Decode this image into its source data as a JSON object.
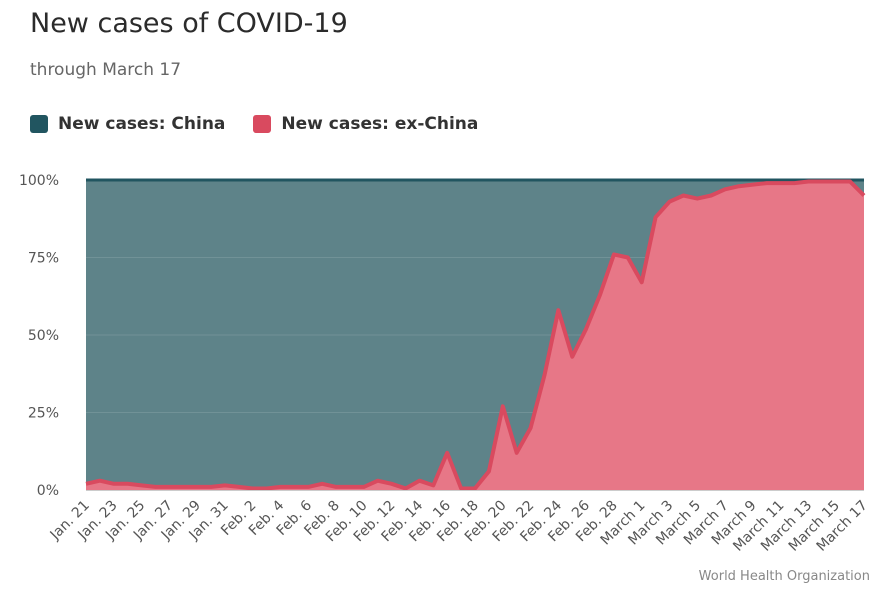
{
  "title": "New cases of COVID-19",
  "subtitle": "through March 17",
  "source": "World Health Organization",
  "colors": {
    "china": "#215560",
    "china_fill": "#5e8389",
    "exchina": "#d94a5f",
    "exchina_fill": "#e77787",
    "grid": "#e6e6e6"
  },
  "chart_data": {
    "type": "area",
    "stacking": "percent",
    "x": [
      "Jan. 21",
      "Jan. 22",
      "Jan. 23",
      "Jan. 24",
      "Jan. 25",
      "Jan. 26",
      "Jan. 27",
      "Jan. 28",
      "Jan. 29",
      "Jan. 30",
      "Jan. 31",
      "Feb. 1",
      "Feb. 2",
      "Feb. 3",
      "Feb. 4",
      "Feb. 5",
      "Feb. 6",
      "Feb. 7",
      "Feb. 8",
      "Feb. 9",
      "Feb. 10",
      "Feb. 11",
      "Feb. 12",
      "Feb. 13",
      "Feb. 14",
      "Feb. 15",
      "Feb. 16",
      "Feb. 17",
      "Feb. 18",
      "Feb. 19",
      "Feb. 20",
      "Feb. 21",
      "Feb. 22",
      "Feb. 23",
      "Feb. 24",
      "Feb. 25",
      "Feb. 26",
      "Feb. 27",
      "Feb. 28",
      "Feb. 29",
      "March 1",
      "March 2",
      "March 3",
      "March 4",
      "March 5",
      "March 6",
      "March 7",
      "March 8",
      "March 9",
      "March 10",
      "March 11",
      "March 12",
      "March 13",
      "March 14",
      "March 15",
      "March 16",
      "March 17"
    ],
    "x_tick_labels": [
      "Jan. 21",
      "Jan. 23",
      "Jan. 25",
      "Jan. 27",
      "Jan. 29",
      "Jan. 31",
      "Feb. 2",
      "Feb. 4",
      "Feb. 6",
      "Feb. 8",
      "Feb. 10",
      "Feb. 12",
      "Feb. 14",
      "Feb. 16",
      "Feb. 18",
      "Feb. 20",
      "Feb. 22",
      "Feb. 24",
      "Feb. 26",
      "Feb. 28",
      "March 1",
      "March 3",
      "March 5",
      "March 7",
      "March 9",
      "March 11",
      "March 13",
      "March 15",
      "March 17"
    ],
    "series": [
      {
        "name": "New cases: China",
        "color": "#215560"
      },
      {
        "name": "New cases: ex-China",
        "color": "#d94a5f",
        "share_percent": [
          2,
          3,
          2,
          2,
          1.5,
          1,
          1,
          1,
          1,
          1,
          1.5,
          1,
          0.5,
          0.5,
          1,
          1,
          1,
          2,
          1,
          1,
          1,
          3,
          2,
          0.5,
          3,
          1.5,
          12,
          0.5,
          0.5,
          6,
          27,
          12,
          20,
          37,
          58,
          43,
          52,
          63,
          76,
          75,
          67,
          88,
          93,
          95,
          94,
          95,
          97,
          98,
          98.5,
          99,
          99,
          99,
          99.5,
          99.5,
          99.5,
          99.5,
          95
        ]
      }
    ],
    "y_tick_labels": [
      "0%",
      "25%",
      "50%",
      "75%",
      "100%"
    ],
    "ylim": [
      0,
      100
    ],
    "legend_position": "top-left",
    "grid": true
  }
}
